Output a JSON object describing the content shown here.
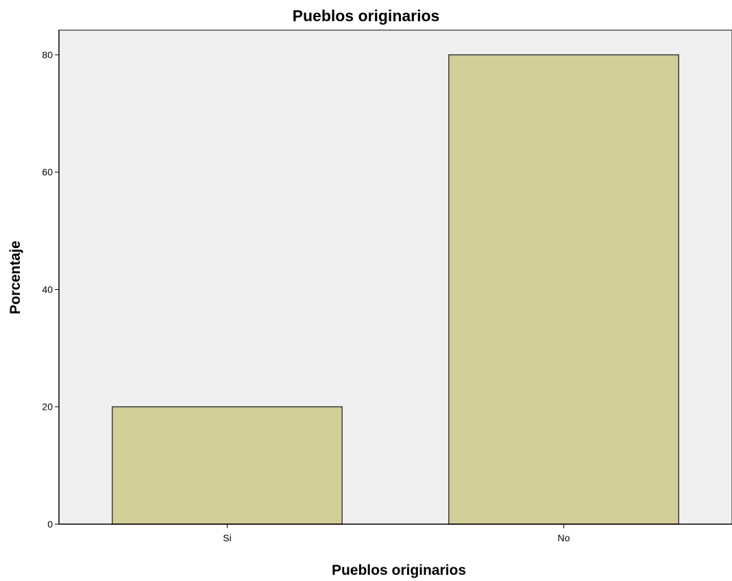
{
  "chart_data": {
    "type": "bar",
    "title": "Pueblos originarios",
    "xlabel": "Pueblos originarios",
    "ylabel": "Porcentaje",
    "categories": [
      "Si",
      "No"
    ],
    "values": [
      20,
      80
    ],
    "ylim": [
      0,
      84.2
    ],
    "yticks": [
      0,
      20,
      40,
      60,
      80
    ],
    "grid": false,
    "colors": {
      "bar_fill": "#d3cd98",
      "bar_stroke": "#3c3c3c",
      "plot_background": "#f0f0f0"
    }
  }
}
